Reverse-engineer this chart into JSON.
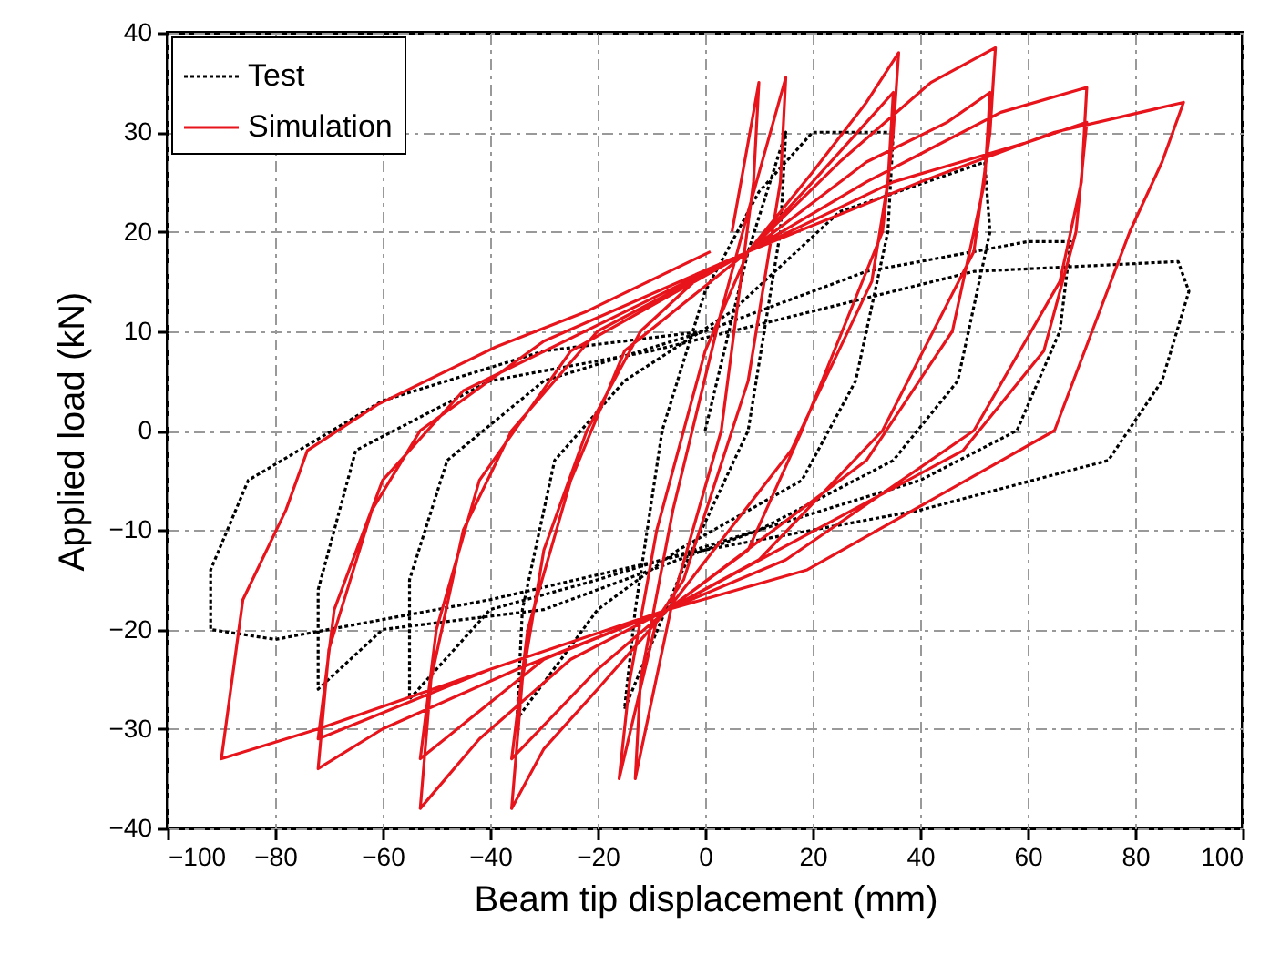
{
  "chart_data": {
    "type": "line",
    "xlabel": "Beam tip displacement (mm)",
    "ylabel": "Applied load (kN)",
    "xlim": [
      -100,
      100
    ],
    "xticks": [
      -100,
      -80,
      -60,
      -40,
      -20,
      0,
      20,
      40,
      60,
      80,
      100
    ],
    "ylim": [
      -40,
      40
    ],
    "yticks": [
      -40,
      -30,
      -20,
      -10,
      0,
      10,
      20,
      30,
      40
    ],
    "grid": true,
    "legend": "top left",
    "series": [
      {
        "name": "Test",
        "color": "#000000",
        "line_style": "dotted",
        "x": [
          0,
          8,
          15,
          14,
          8,
          -5,
          -15,
          -13,
          -8,
          0,
          10,
          20,
          35,
          34,
          28,
          18,
          -5,
          -20,
          -35,
          -34,
          -28,
          -15,
          5,
          25,
          52,
          53,
          47,
          35,
          10,
          -20,
          -40,
          -55,
          -55,
          -48,
          -30,
          0,
          30,
          60,
          68,
          66,
          58,
          40,
          10,
          -30,
          -60,
          -72,
          -72,
          -65,
          -40,
          -10,
          20,
          50,
          88,
          90,
          85,
          75,
          40,
          0,
          -40,
          -80,
          -92,
          -92,
          -85,
          -60,
          -30,
          0
        ],
        "values": [
          0,
          18,
          30,
          20,
          0,
          -15,
          -28,
          -18,
          0,
          14,
          24,
          30,
          30,
          20,
          5,
          -5,
          -12,
          -18,
          -29,
          -18,
          -3,
          5,
          12,
          22,
          27,
          20,
          5,
          -3,
          -10,
          -15,
          -18,
          -27,
          -15,
          -3,
          5,
          10,
          16,
          19,
          19,
          10,
          0,
          -5,
          -10,
          -18,
          -20,
          -26,
          -16,
          -2,
          5,
          8,
          12,
          16,
          17,
          14,
          5,
          -3,
          -8,
          -12,
          -17,
          -21,
          -20,
          -14,
          -5,
          3,
          8,
          10
        ]
      },
      {
        "name": "Simulation",
        "color": "#e8141c",
        "line_style": "solid",
        "x": [
          5,
          10,
          9,
          3,
          -6,
          -13,
          -12,
          -6,
          3,
          8,
          15,
          14,
          8,
          -4,
          -9,
          -16,
          -14,
          -9,
          0,
          8,
          20,
          30,
          36,
          35,
          33,
          18,
          8,
          -7,
          -20,
          -30,
          -36,
          -34,
          -30,
          -22,
          -12,
          0,
          8,
          20,
          30,
          35,
          34,
          31,
          16,
          -7,
          -20,
          -36,
          -33,
          -25,
          -15,
          8,
          25,
          42,
          54,
          53,
          50,
          33,
          10,
          -7,
          -25,
          -42,
          -53,
          -51,
          -45,
          -36,
          -20,
          8,
          30,
          45,
          53,
          52,
          46,
          30,
          -7,
          -30,
          -53,
          -50,
          -42,
          -25,
          8,
          30,
          55,
          71,
          70,
          66,
          50,
          15,
          -7,
          -35,
          -60,
          -72,
          -70,
          -62,
          -53,
          -30,
          8,
          35,
          60,
          71,
          69,
          63,
          48,
          -7,
          -40,
          -72,
          -69,
          -60,
          -45,
          8,
          40,
          65,
          89,
          85,
          79,
          65,
          19,
          -7,
          -40,
          -72,
          -90,
          -86,
          -78,
          -74,
          -61,
          -39,
          -22,
          1
        ],
        "values": [
          20,
          35,
          25,
          0,
          -17,
          -35,
          -25,
          -8,
          12,
          22,
          35.5,
          25,
          5,
          -15,
          -19,
          -35,
          -25,
          -10,
          8,
          18,
          26,
          33,
          38,
          30,
          20,
          0,
          -12,
          -18,
          -26,
          -32,
          -38,
          -25,
          -12,
          0,
          10,
          16,
          18,
          25,
          31,
          34,
          25,
          15,
          -2,
          -18,
          -24,
          -33,
          -20,
          -5,
          8,
          18,
          27,
          35,
          38.5,
          30,
          18,
          0,
          -13,
          -18,
          -23,
          -31,
          -38,
          -25,
          -10,
          0,
          10,
          18,
          27,
          31,
          34,
          25,
          10,
          -3,
          -18,
          -23,
          -33,
          -20,
          -5,
          8,
          18,
          25,
          32,
          34.5,
          25,
          15,
          0,
          -13,
          -18,
          -24,
          -30,
          -34,
          -22,
          -8,
          0,
          9,
          18,
          25,
          29,
          31,
          20,
          8,
          -2,
          -18,
          -24,
          -31,
          -18,
          -5,
          4,
          18,
          25,
          30,
          33,
          27,
          20,
          0,
          -14,
          -18,
          -24,
          -30,
          -33,
          -17,
          -8,
          -2,
          2.6,
          8.4,
          12,
          18
        ]
      }
    ]
  }
}
